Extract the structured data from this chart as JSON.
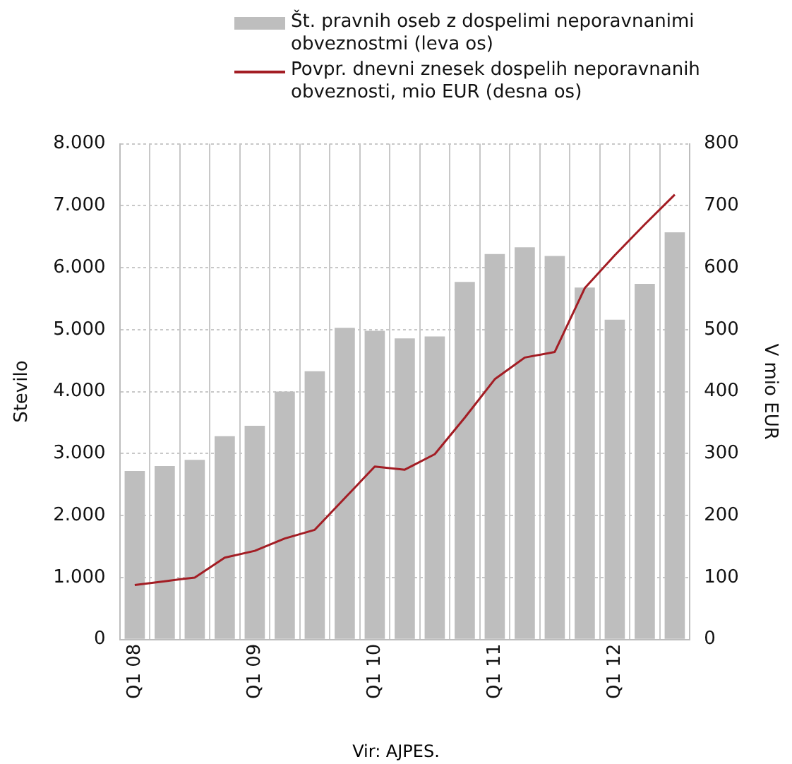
{
  "chart_data": {
    "type": "bar",
    "categories": [
      "Q1 08",
      null,
      null,
      null,
      "Q1 09",
      null,
      null,
      null,
      "Q1 10",
      null,
      null,
      null,
      "Q1 11",
      null,
      null,
      null,
      "Q1 12",
      null,
      null
    ],
    "series": [
      {
        "name": "Št. pravnih oseb z dospelimi neporavnanimi obveznostmi (leva os)",
        "color": "#bebebe",
        "values": [
          2720,
          2800,
          2900,
          3280,
          3450,
          4000,
          4330,
          5030,
          4980,
          4860,
          4890,
          5770,
          6220,
          6330,
          6190,
          5680,
          5160,
          5740,
          6570
        ]
      },
      {
        "name": "Povpr. dnevni znesek dospelih neporavnanih obveznosti, mio EUR (desna os)",
        "type": "line",
        "axis": "y2",
        "color": "#a31d24",
        "values": [
          88,
          94,
          100,
          132,
          143,
          163,
          177,
          228,
          279,
          274,
          299,
          358,
          420,
          455,
          464,
          567,
          620,
          670,
          718
        ]
      }
    ],
    "ylabel": "Stevilo",
    "y2label": "V mio EUR",
    "ylim": [
      0,
      8000
    ],
    "yticks": [
      {
        "value": 0,
        "label": "0"
      },
      {
        "value": 1000,
        "label": "1.000"
      },
      {
        "value": 2000,
        "label": "2.000"
      },
      {
        "value": 3000,
        "label": "3.000"
      },
      {
        "value": 4000,
        "label": "4.000"
      },
      {
        "value": 5000,
        "label": "5.000"
      },
      {
        "value": 6000,
        "label": "6.000"
      },
      {
        "value": 7000,
        "label": "7.000"
      },
      {
        "value": 8000,
        "label": "8.000"
      }
    ],
    "y2lim": [
      0,
      800
    ],
    "y2ticks": [
      0,
      100,
      200,
      300,
      400,
      500,
      600,
      700,
      800
    ],
    "grid": true,
    "legend": "top",
    "marker": "none",
    "line_style": "solid",
    "annotations": [
      "Vir: AJPES."
    ]
  }
}
